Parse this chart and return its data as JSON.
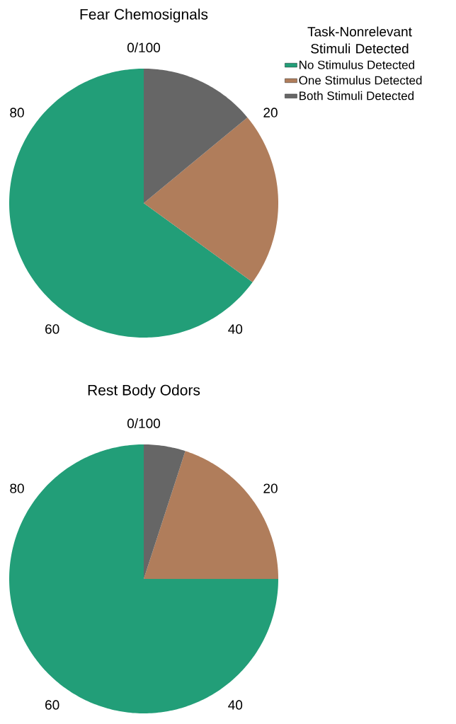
{
  "chart_data": [
    {
      "type": "pie",
      "title": "Fear Chemosignals",
      "legend_title": "Task-Nonrelevant Stimuli Detected",
      "legend": "top right",
      "categories": [
        "No Stimulus Detected",
        "One Stimulus Detected",
        "Both Stimuli Detected"
      ],
      "values": [
        65,
        21,
        14
      ],
      "colors": [
        "#229e78",
        "#b07d5b",
        "#666666"
      ],
      "annotations": [
        "0/100",
        "20",
        "40",
        "60",
        "80"
      ]
    },
    {
      "type": "pie",
      "title": "Rest Body Odors",
      "legend": false,
      "categories": [
        null,
        null,
        null
      ],
      "values": [
        75,
        20,
        5
      ],
      "colors": [
        "#229e78",
        "#b07d5b",
        "#666666"
      ],
      "annotations": [
        "0/100",
        "20",
        "40",
        "60",
        "80"
      ]
    }
  ]
}
